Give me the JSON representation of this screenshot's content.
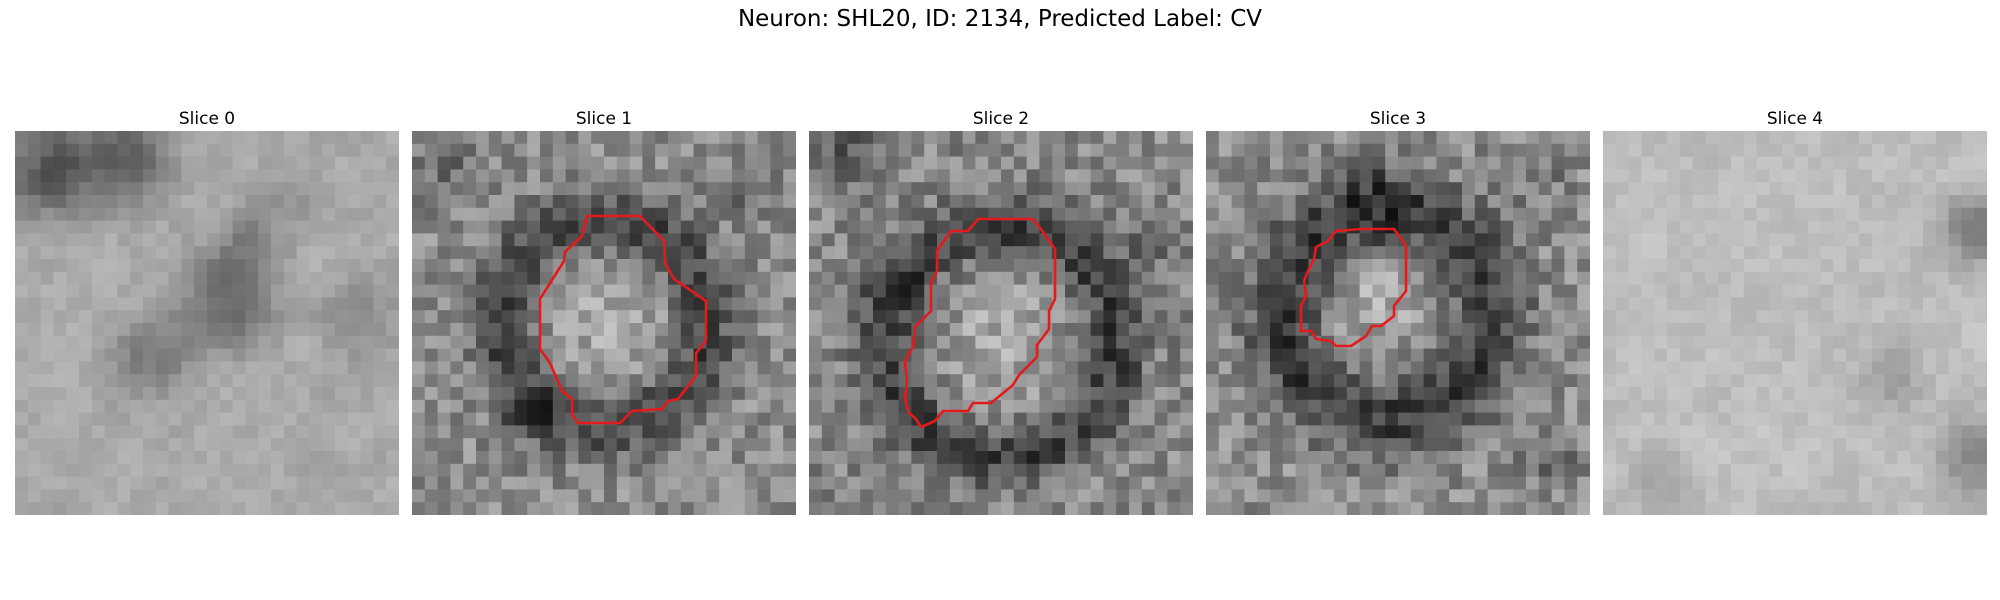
{
  "figure": {
    "title": "Neuron: SHL20, ID: 2134, Predicted Label: CV",
    "contour_color": "#e41a1c",
    "panels": [
      {
        "title": "Slice 0",
        "has_contour": false,
        "image": "grayscale-em-patch-slice-0"
      },
      {
        "title": "Slice 1",
        "has_contour": true,
        "image": "grayscale-em-patch-slice-1"
      },
      {
        "title": "Slice 2",
        "has_contour": true,
        "image": "grayscale-em-patch-slice-2"
      },
      {
        "title": "Slice 3",
        "has_contour": true,
        "image": "grayscale-em-patch-slice-3"
      },
      {
        "title": "Slice 4",
        "has_contour": false,
        "image": "grayscale-em-patch-slice-4"
      }
    ]
  }
}
